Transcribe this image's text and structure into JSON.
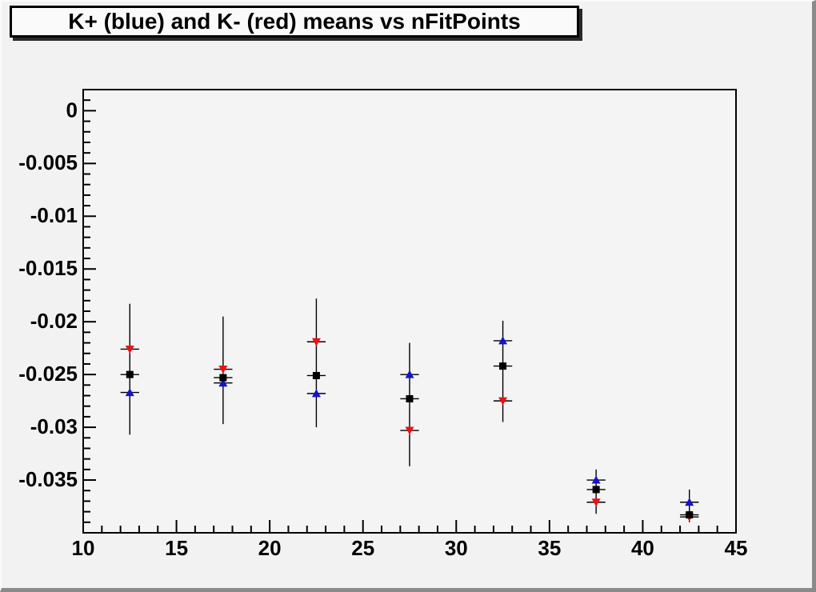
{
  "title": "K+ (blue) and K- (red) means vs nFitPoints",
  "colors": {
    "canvas_bg": "#f2f2f2",
    "frame_fill": "#f4f4f4",
    "frame_line": "#000000",
    "kplus_blue": "#1414cc",
    "kminus_red": "#ee1111",
    "mean_black": "#000000"
  },
  "chart_data": {
    "type": "scatter",
    "title": "K+ (blue) and K- (red) means vs nFitPoints",
    "xlabel": "",
    "ylabel": "",
    "xlim": [
      10,
      45
    ],
    "ylim": [
      -0.04,
      0.002
    ],
    "grid": false,
    "legend": "none (colors named in title)",
    "x_major_ticks": [
      10,
      15,
      20,
      25,
      30,
      35,
      40,
      45
    ],
    "x_tick_labels": [
      "10",
      "15",
      "20",
      "25",
      "30",
      "35",
      "40",
      "45"
    ],
    "x_minor_step": 1,
    "y_major_ticks": [
      0,
      -0.005,
      -0.01,
      -0.015,
      -0.02,
      -0.025,
      -0.03,
      -0.035
    ],
    "y_tick_labels": [
      "0",
      "-0.005",
      "-0.01",
      "-0.015",
      "-0.02",
      "-0.025",
      "-0.03",
      "-0.035"
    ],
    "y_minor_step": 0.001,
    "x": [
      12.5,
      17.5,
      22.5,
      27.5,
      32.5,
      37.5,
      42.5
    ],
    "x_error_half_width": 0.5,
    "error_bar_ranges": [
      [
        -0.0183,
        -0.0307
      ],
      [
        -0.0195,
        -0.0297
      ],
      [
        -0.0178,
        -0.03
      ],
      [
        -0.022,
        -0.0337
      ],
      [
        -0.0199,
        -0.0295
      ],
      [
        -0.034,
        -0.0382
      ],
      [
        -0.0359,
        -0.039
      ]
    ],
    "series": [
      {
        "name": "K- (red)",
        "marker": "triangle-down",
        "color": "#ee1111",
        "values": [
          -0.0226,
          -0.0245,
          -0.0219,
          -0.0303,
          -0.0275,
          -0.0371,
          -0.0385
        ]
      },
      {
        "name": "K+ (blue)",
        "marker": "triangle-up",
        "color": "#1414cc",
        "values": [
          -0.0267,
          -0.0258,
          -0.0268,
          -0.025,
          -0.0218,
          -0.035,
          -0.0371
        ]
      },
      {
        "name": "combined mean",
        "marker": "square",
        "color": "#000000",
        "values": [
          -0.025,
          -0.0253,
          -0.0251,
          -0.0273,
          -0.0242,
          -0.0359,
          -0.0383
        ]
      }
    ]
  }
}
